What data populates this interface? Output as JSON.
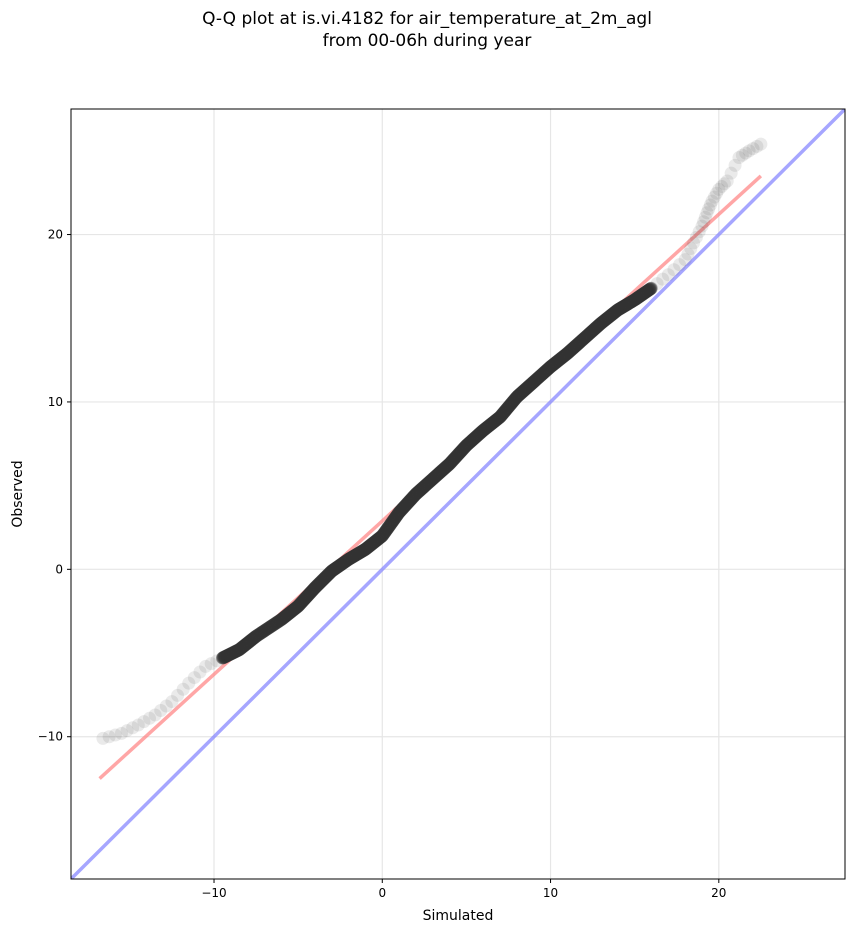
{
  "chart_data": {
    "type": "scatter",
    "title_line1": "Q-Q plot at is.vi.4182 for air_temperature_at_2m_agl",
    "title_line2": "from 00-06h during year",
    "xlabel": "Simulated",
    "ylabel": "Observed",
    "xlim": [
      -18.5,
      27.5
    ],
    "ylim": [
      -18.5,
      27.5
    ],
    "x_ticks": [
      -10,
      0,
      10,
      20
    ],
    "y_ticks": [
      -10,
      0,
      10,
      20
    ],
    "x_tick_labels": [
      "−10",
      "0",
      "10",
      "20"
    ],
    "y_tick_labels": [
      "−10",
      "0",
      "10",
      "20"
    ],
    "grid": true,
    "legend": "none",
    "colors": {
      "points": "#333333",
      "fit_line": "#ff8080",
      "identity_line": "#8080ff",
      "grid": "#e6e6e6"
    },
    "quantile_curve": [
      {
        "x": -16.6,
        "y": -10.1
      },
      {
        "x": -15.5,
        "y": -9.8
      },
      {
        "x": -14.5,
        "y": -9.3
      },
      {
        "x": -13.5,
        "y": -8.7
      },
      {
        "x": -12.5,
        "y": -7.9
      },
      {
        "x": -11.5,
        "y": -6.8
      },
      {
        "x": -10.5,
        "y": -5.8
      },
      {
        "x": -9.5,
        "y": -5.3
      },
      {
        "x": -8.5,
        "y": -4.8
      },
      {
        "x": -7.5,
        "y": -4.0
      },
      {
        "x": -6.0,
        "y": -3.0
      },
      {
        "x": -5.0,
        "y": -2.2
      },
      {
        "x": -4.0,
        "y": -1.1
      },
      {
        "x": -3.0,
        "y": -0.1
      },
      {
        "x": -2.0,
        "y": 0.6
      },
      {
        "x": -1.0,
        "y": 1.2
      },
      {
        "x": 0.0,
        "y": 2.0
      },
      {
        "x": 1.0,
        "y": 3.4
      },
      {
        "x": 2.0,
        "y": 4.5
      },
      {
        "x": 3.0,
        "y": 5.4
      },
      {
        "x": 4.0,
        "y": 6.3
      },
      {
        "x": 5.0,
        "y": 7.4
      },
      {
        "x": 6.0,
        "y": 8.3
      },
      {
        "x": 7.0,
        "y": 9.1
      },
      {
        "x": 8.0,
        "y": 10.3
      },
      {
        "x": 9.0,
        "y": 11.2
      },
      {
        "x": 10.0,
        "y": 12.1
      },
      {
        "x": 11.0,
        "y": 12.9
      },
      {
        "x": 12.0,
        "y": 13.8
      },
      {
        "x": 13.0,
        "y": 14.7
      },
      {
        "x": 14.0,
        "y": 15.5
      },
      {
        "x": 15.0,
        "y": 16.1
      },
      {
        "x": 16.0,
        "y": 16.8
      },
      {
        "x": 17.0,
        "y": 17.6
      },
      {
        "x": 18.0,
        "y": 18.5
      },
      {
        "x": 18.5,
        "y": 19.5
      },
      {
        "x": 19.0,
        "y": 20.5
      },
      {
        "x": 19.3,
        "y": 21.3
      },
      {
        "x": 19.6,
        "y": 22.0
      },
      {
        "x": 20.0,
        "y": 22.7
      },
      {
        "x": 20.5,
        "y": 23.2
      },
      {
        "x": 21.2,
        "y": 24.6
      },
      {
        "x": 21.8,
        "y": 25.0
      },
      {
        "x": 22.5,
        "y": 25.4
      }
    ],
    "fit_line": {
      "x": [
        -16.8,
        22.5
      ],
      "y": [
        -12.5,
        23.5
      ]
    },
    "identity_line": {
      "x": [
        -18.5,
        27.5
      ],
      "y": [
        -18.5,
        27.5
      ]
    }
  }
}
